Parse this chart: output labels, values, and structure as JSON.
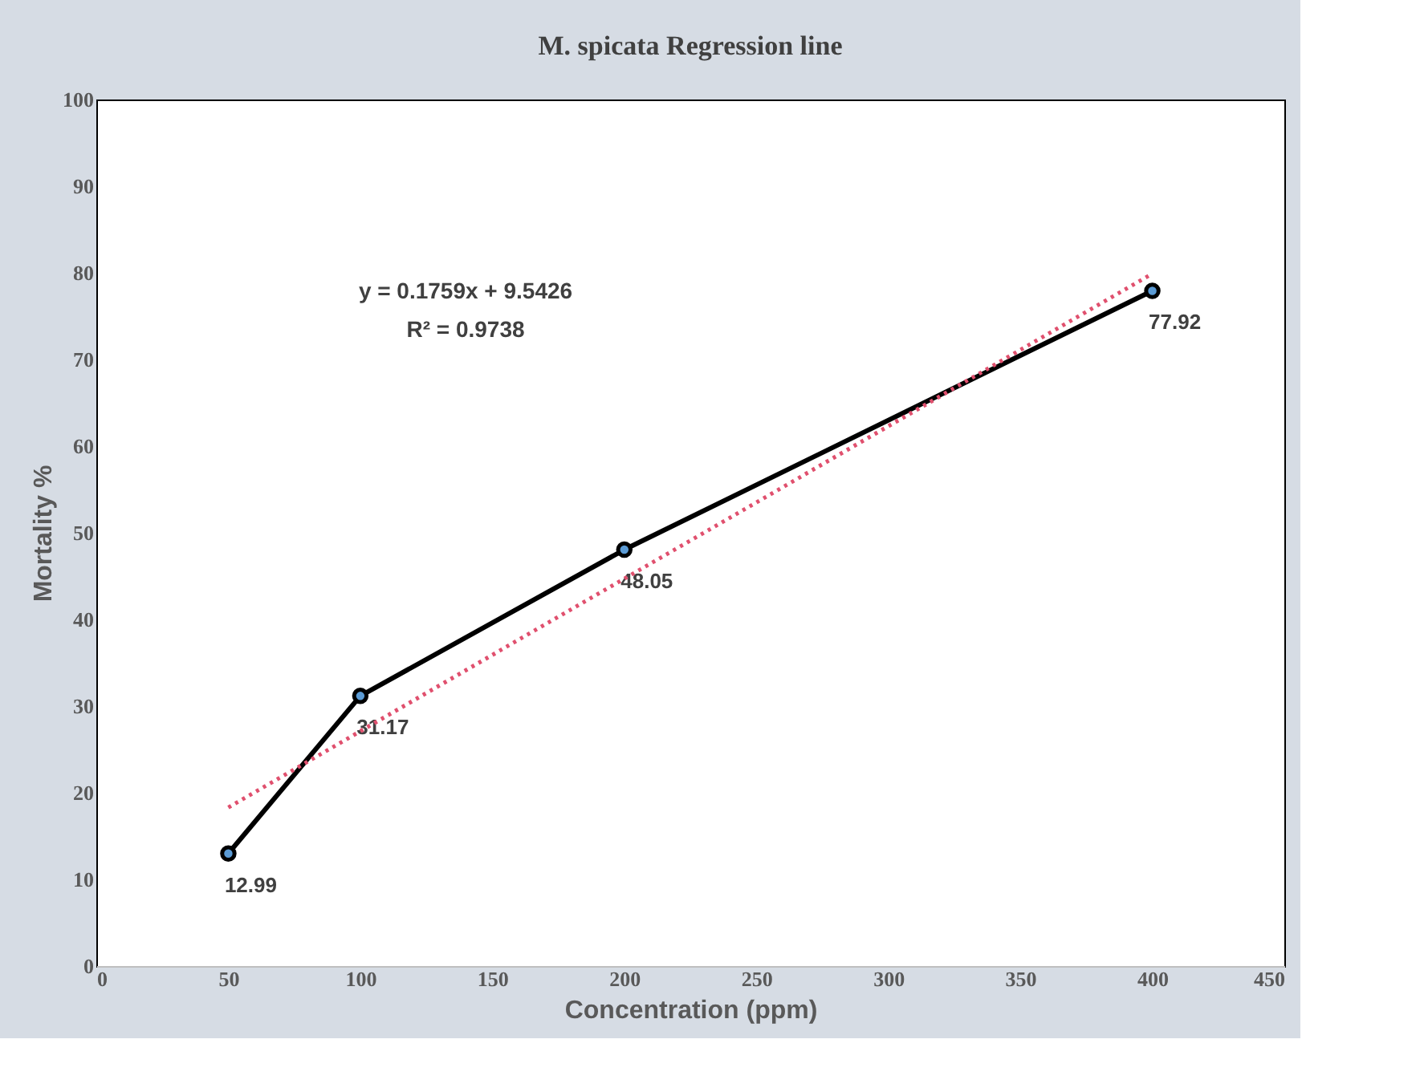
{
  "chart_data": {
    "type": "line",
    "title": "M. spicata Regression line",
    "xlabel": "Concentration (ppm)",
    "ylabel": "Mortality %",
    "x": [
      50,
      100,
      200,
      400
    ],
    "series": [
      {
        "color": "#000000",
        "values": [
          12.99,
          31.17,
          48.05,
          77.92
        ],
        "value_labels": [
          "12.99",
          "31.17",
          "48.05",
          "77.92"
        ],
        "marker": "circle",
        "line_style": "solid"
      },
      {
        "type": "line",
        "color": "#e0506e",
        "x": [
          50,
          400
        ],
        "values": [
          18.3,
          79.9
        ],
        "marker": "none",
        "line_style": "dotted"
      }
    ],
    "annotations": [
      "y = 0.1759x + 9.5426",
      "R² = 0.9738"
    ],
    "xlim": [
      0,
      450
    ],
    "xticks": [
      0,
      50,
      100,
      150,
      200,
      250,
      300,
      350,
      400,
      450
    ],
    "ylim": [
      0,
      100
    ],
    "yticks": [
      0,
      10,
      20,
      30,
      40,
      50,
      60,
      70,
      80,
      90,
      100
    ],
    "grid": false
  }
}
